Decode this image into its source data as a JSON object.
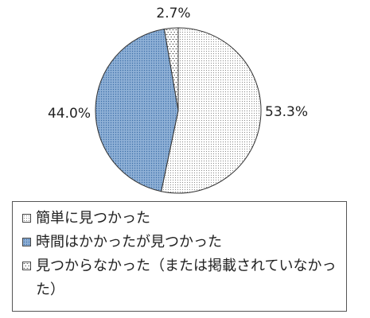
{
  "chart_data": {
    "type": "pie",
    "title": "",
    "slices": [
      {
        "label": "簡単に見つかった",
        "value": 53.3,
        "data_label": "53.3%",
        "fill": "#ffffff",
        "dot": "#8a8a8a",
        "pattern": "dots"
      },
      {
        "label": "時間はかかったが見つかった",
        "value": 44.0,
        "data_label": "44.0%",
        "fill": "#8fb0d6",
        "dot": "#3d6fa8",
        "pattern": "dots"
      },
      {
        "label": "見つからなかった（または掲載されていなかった）",
        "value": 2.7,
        "data_label": "2.7%",
        "fill": "#ffffff",
        "dot": "#333333",
        "pattern": "dashes"
      }
    ],
    "legend_position": "bottom"
  }
}
